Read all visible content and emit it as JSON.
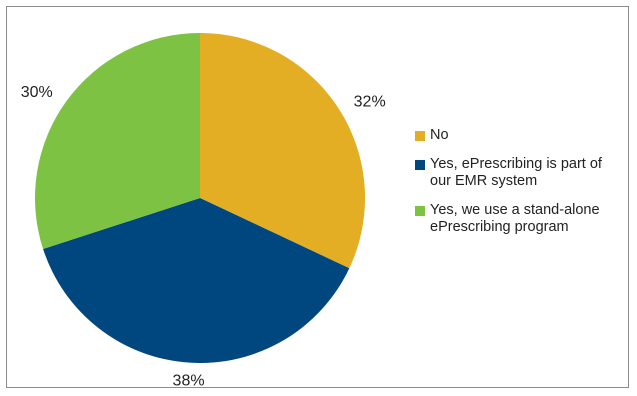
{
  "chart_data": {
    "type": "pie",
    "categories": [
      "No",
      "Yes, ePrescribing is part of our EMR system",
      "Yes, we use a stand-alone ePrescribing program"
    ],
    "values": [
      32,
      38,
      30
    ],
    "value_labels": [
      "32%",
      "38%",
      "30%"
    ],
    "colors": [
      "#E3AE24",
      "#00467F",
      "#7DC242"
    ],
    "start_angle_deg": 0,
    "direction": "clockwise",
    "legend_position": "right"
  }
}
